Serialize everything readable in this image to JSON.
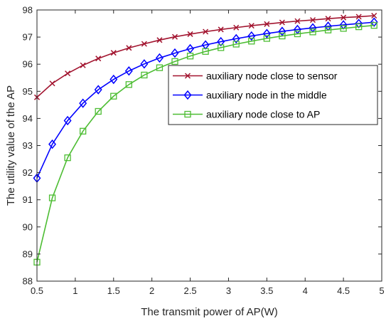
{
  "chart_data": {
    "type": "line",
    "xlabel": "The transmit power of AP(W)",
    "ylabel": "The utility value of the AP",
    "xlim": [
      0.5,
      5
    ],
    "ylim": [
      88,
      98
    ],
    "xticks": [
      "0.5",
      "1",
      "1.5",
      "2",
      "2.5",
      "3",
      "3.5",
      "4",
      "4.5",
      "5"
    ],
    "yticks": [
      "88",
      "89",
      "90",
      "91",
      "92",
      "93",
      "94",
      "95",
      "96",
      "97",
      "98"
    ],
    "grid": false,
    "legend_position": "top-right",
    "x": [
      0.5,
      0.7,
      0.9,
      1.1,
      1.3,
      1.5,
      1.7,
      1.9,
      2.1,
      2.3,
      2.5,
      2.7,
      2.9,
      3.1,
      3.3,
      3.5,
      3.7,
      3.9,
      4.1,
      4.3,
      4.5,
      4.7,
      4.9
    ],
    "series": [
      {
        "name": "auxiliary node close to sensor",
        "color": "#a2142f",
        "marker": "x",
        "values": [
          94.78,
          95.29,
          95.66,
          95.96,
          96.21,
          96.42,
          96.6,
          96.75,
          96.89,
          97.01,
          97.11,
          97.2,
          97.28,
          97.35,
          97.42,
          97.48,
          97.54,
          97.59,
          97.63,
          97.68,
          97.72,
          97.75,
          97.79
        ]
      },
      {
        "name": "auxiliary node in the middle",
        "color": "#0000ff",
        "marker": "diamond",
        "values": [
          91.8,
          93.05,
          93.92,
          94.56,
          95.06,
          95.44,
          95.75,
          96.01,
          96.23,
          96.41,
          96.57,
          96.71,
          96.83,
          96.94,
          97.04,
          97.13,
          97.21,
          97.28,
          97.34,
          97.4,
          97.45,
          97.5,
          97.55
        ]
      },
      {
        "name": "auxiliary node close to AP",
        "color": "#4dbd33",
        "marker": "square",
        "values": [
          88.7,
          91.07,
          92.55,
          93.53,
          94.26,
          94.82,
          95.25,
          95.6,
          95.87,
          96.1,
          96.3,
          96.47,
          96.61,
          96.74,
          96.85,
          96.95,
          97.04,
          97.12,
          97.19,
          97.26,
          97.32,
          97.38,
          97.43
        ]
      }
    ]
  }
}
